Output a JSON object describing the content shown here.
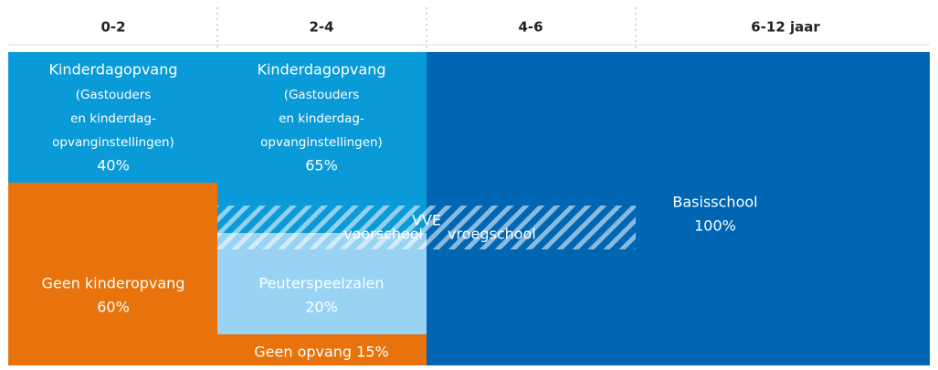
{
  "header": {
    "columns": [
      "0-2",
      "2-4",
      "4-6",
      "6-12 jaar"
    ]
  },
  "blocks": {
    "kinderdagopvang_0_2": {
      "lines": [
        "Kinderdagopvang",
        "(Gastouders",
        "en kinderdag-",
        "opvanginstellingen)"
      ],
      "percent": "40%"
    },
    "geen_kinderopvang": {
      "label": "Geen kinderopvang",
      "percent": "60%"
    },
    "kinderdagopvang_2_4": {
      "lines": [
        "Kinderdagopvang",
        "(Gastouders",
        "en kinderdag-",
        "opvanginstellingen)"
      ],
      "percent": "65%"
    },
    "peuterspeelzalen": {
      "label": "Peuterspeelzalen",
      "percent": "20%"
    },
    "geen_opvang": {
      "label": "Geen opvang 15%"
    },
    "basisschool": {
      "label": "Basisschool",
      "percent": "100%"
    },
    "vve": {
      "label": "VVE",
      "voorschool": "voorschool",
      "vroegschool": "vroegschool"
    }
  }
}
